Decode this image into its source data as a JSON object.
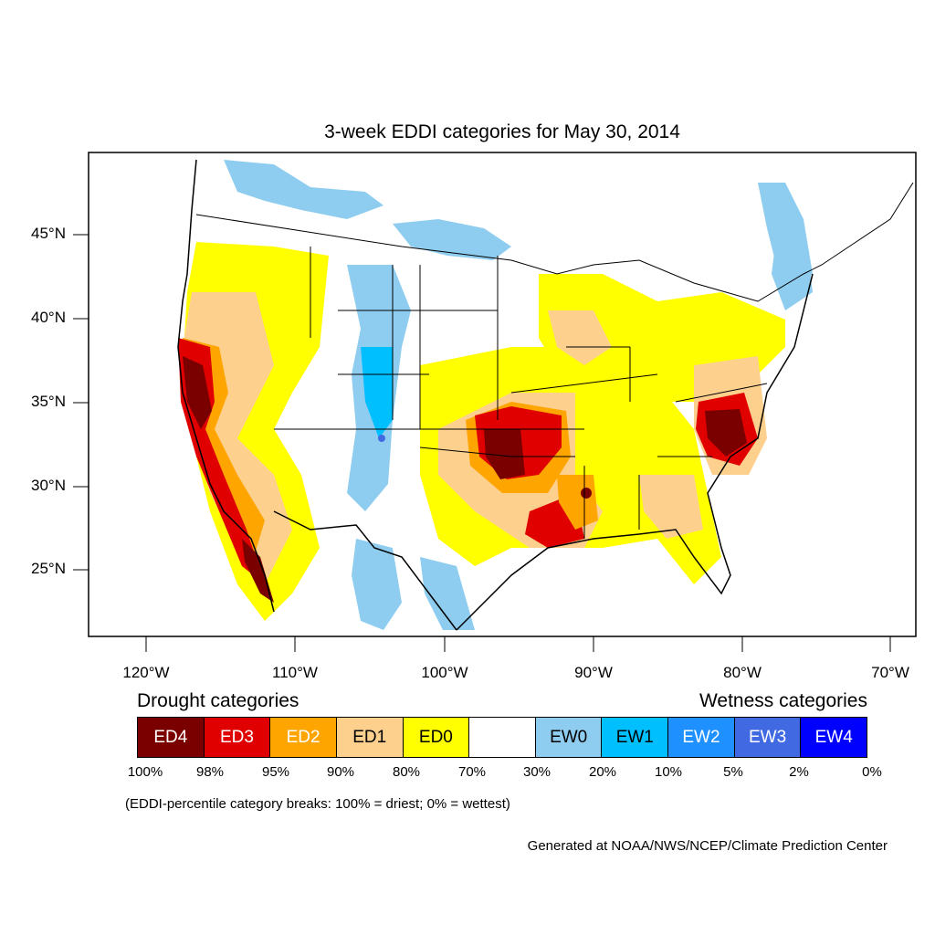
{
  "title": "3-week EDDI categories for May 30, 2014",
  "lat_labels": [
    "45°N",
    "40°N",
    "35°N",
    "30°N",
    "25°N"
  ],
  "lon_labels": [
    "120°W",
    "110°W",
    "100°W",
    "90°W",
    "80°W",
    "70°W"
  ],
  "legend": {
    "drought_heading": "Drought categories",
    "wetness_heading": "Wetness categories",
    "categories": [
      {
        "label": "ED4",
        "color": "#7a0000",
        "text_color": "#ffffff"
      },
      {
        "label": "ED3",
        "color": "#e00000",
        "text_color": "#ffffff"
      },
      {
        "label": "ED2",
        "color": "#ffa500",
        "text_color": "#ffffff"
      },
      {
        "label": "ED1",
        "color": "#fdd08e",
        "text_color": "#000000"
      },
      {
        "label": "ED0",
        "color": "#ffff00",
        "text_color": "#000000"
      },
      {
        "label": "",
        "color": "#ffffff",
        "text_color": "#000000"
      },
      {
        "label": "EW0",
        "color": "#8ecdf0",
        "text_color": "#000000"
      },
      {
        "label": "EW1",
        "color": "#00bfff",
        "text_color": "#000000"
      },
      {
        "label": "EW2",
        "color": "#1e90ff",
        "text_color": "#ffffff"
      },
      {
        "label": "EW3",
        "color": "#4169e1",
        "text_color": "#ffffff"
      },
      {
        "label": "EW4",
        "color": "#0000ff",
        "text_color": "#ffffff"
      }
    ],
    "percent_breaks": [
      "100%",
      "98%",
      "95%",
      "90%",
      "80%",
      "70%",
      "30%",
      "20%",
      "10%",
      "5%",
      "2%",
      "0%"
    ]
  },
  "note": "(EDDI-percentile category breaks: 100% = driest; 0% = wettest)",
  "credit": "Generated at NOAA/NWS/NCEP/Climate Prediction Center"
}
